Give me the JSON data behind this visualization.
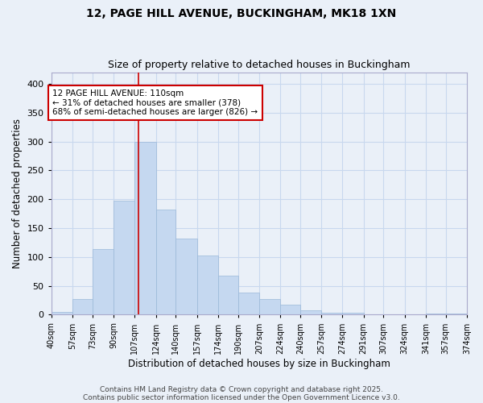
{
  "title1": "12, PAGE HILL AVENUE, BUCKINGHAM, MK18 1XN",
  "title2": "Size of property relative to detached houses in Buckingham",
  "xlabel": "Distribution of detached houses by size in Buckingham",
  "ylabel": "Number of detached properties",
  "bin_edges": [
    40,
    57,
    73,
    90,
    107,
    124,
    140,
    157,
    174,
    190,
    207,
    224,
    240,
    257,
    274,
    291,
    307,
    324,
    341,
    357,
    374
  ],
  "bar_heights": [
    5,
    27,
    113,
    197,
    300,
    182,
    132,
    102,
    68,
    38,
    27,
    17,
    8,
    3,
    3,
    1,
    1,
    1,
    2,
    2
  ],
  "bar_color": "#c5d8f0",
  "bar_edge_color": "#9ab8d8",
  "grid_color": "#c8d8ee",
  "background_color": "#eaf0f8",
  "vline_x": 110,
  "vline_color": "#cc0000",
  "annotation_text": "12 PAGE HILL AVENUE: 110sqm\n← 31% of detached houses are smaller (378)\n68% of semi-detached houses are larger (826) →",
  "annotation_box_color": "#ffffff",
  "annotation_box_edge": "#cc0000",
  "ylim": [
    0,
    420
  ],
  "yticks": [
    0,
    50,
    100,
    150,
    200,
    250,
    300,
    350,
    400
  ],
  "tick_labels": [
    "40sqm",
    "57sqm",
    "73sqm",
    "90sqm",
    "107sqm",
    "124sqm",
    "140sqm",
    "157sqm",
    "174sqm",
    "190sqm",
    "207sqm",
    "224sqm",
    "240sqm",
    "257sqm",
    "274sqm",
    "291sqm",
    "307sqm",
    "324sqm",
    "341sqm",
    "357sqm",
    "374sqm"
  ],
  "footer_text1": "Contains HM Land Registry data © Crown copyright and database right 2025.",
  "footer_text2": "Contains public sector information licensed under the Open Government Licence v3.0."
}
